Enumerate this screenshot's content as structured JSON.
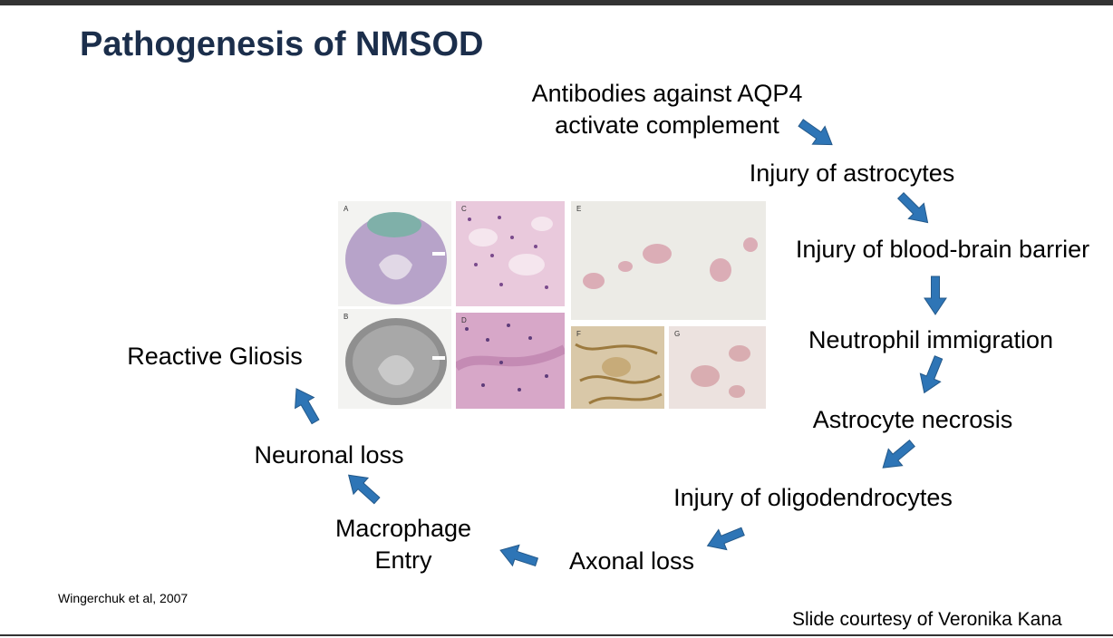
{
  "slide": {
    "title": "Pathogenesis of NMSOD",
    "steps": {
      "antibodies_line1": "Antibodies against AQP4",
      "antibodies_line2": "activate complement",
      "injury_astrocytes": "Injury of astrocytes",
      "injury_bbb": "Injury of blood-brain barrier",
      "neutrophil": "Neutrophil immigration",
      "necrosis": "Astrocyte necrosis",
      "oligodendrocytes": "Injury of oligodendrocytes",
      "axonal_loss": "Axonal loss",
      "macrophage_line1": "Macrophage",
      "macrophage_line2": "Entry",
      "neuronal_loss": "Neuronal loss",
      "gliosis": "Reactive Gliosis"
    },
    "panels": {
      "a": "A",
      "b": "B",
      "c": "C",
      "d": "D",
      "e": "E",
      "f": "F",
      "g": "G"
    },
    "citation": "Wingerchuk et al, 2007",
    "courtesy": "Slide courtesy of Veronika Kana"
  },
  "colors": {
    "title": "#1b2e4b",
    "arrow_fill": "#2e75b6",
    "arrow_stroke": "#24598a"
  }
}
